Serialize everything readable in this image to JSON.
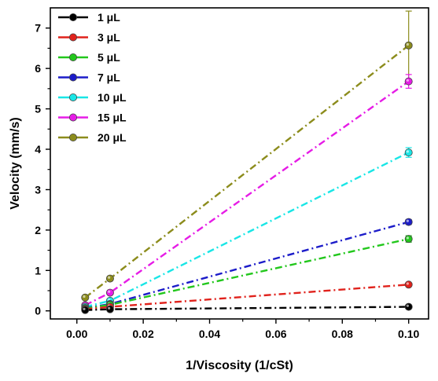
{
  "chart_data": {
    "type": "line",
    "title": "",
    "xlabel": "1/Viscosity (1/cSt)",
    "ylabel": "Velocity (mm/s)",
    "xlim": [
      -0.008,
      0.106
    ],
    "ylim": [
      -0.2,
      7.5
    ],
    "x_ticks": [
      "0.00",
      "0.02",
      "0.04",
      "0.06",
      "0.08",
      "0.10"
    ],
    "y_ticks": [
      "0",
      "1",
      "2",
      "3",
      "4",
      "5",
      "6",
      "7"
    ],
    "line_style": "dash-dot",
    "legend_position": "top-left",
    "x": [
      0.0025,
      0.01,
      0.1
    ],
    "series": [
      {
        "name": "1 μL",
        "color": "#000000",
        "values": [
          0.02,
          0.04,
          0.1
        ],
        "errors": [
          0.01,
          0.01,
          0.02
        ]
      },
      {
        "name": "3 μL",
        "color": "#e0221c",
        "values": [
          0.04,
          0.1,
          0.65
        ],
        "errors": [
          0.01,
          0.02,
          0.04
        ]
      },
      {
        "name": "5 μL",
        "color": "#22c71c",
        "values": [
          0.06,
          0.15,
          1.78
        ],
        "errors": [
          0.01,
          0.02,
          0.08
        ]
      },
      {
        "name": "7 μL",
        "color": "#1c1cc9",
        "values": [
          0.07,
          0.17,
          2.2
        ],
        "errors": [
          0.01,
          0.02,
          0.06
        ]
      },
      {
        "name": "10 μL",
        "color": "#19e6e6",
        "values": [
          0.1,
          0.25,
          3.92
        ],
        "errors": [
          0.02,
          0.03,
          0.12
        ]
      },
      {
        "name": "15 μL",
        "color": "#e61ce6",
        "values": [
          0.14,
          0.45,
          5.68
        ],
        "errors": [
          0.02,
          0.04,
          0.17
        ]
      },
      {
        "name": "20 μL",
        "color": "#8c8c1c",
        "values": [
          0.33,
          0.8,
          6.57
        ],
        "errors": [
          0.03,
          0.05,
          0.85
        ]
      }
    ]
  }
}
